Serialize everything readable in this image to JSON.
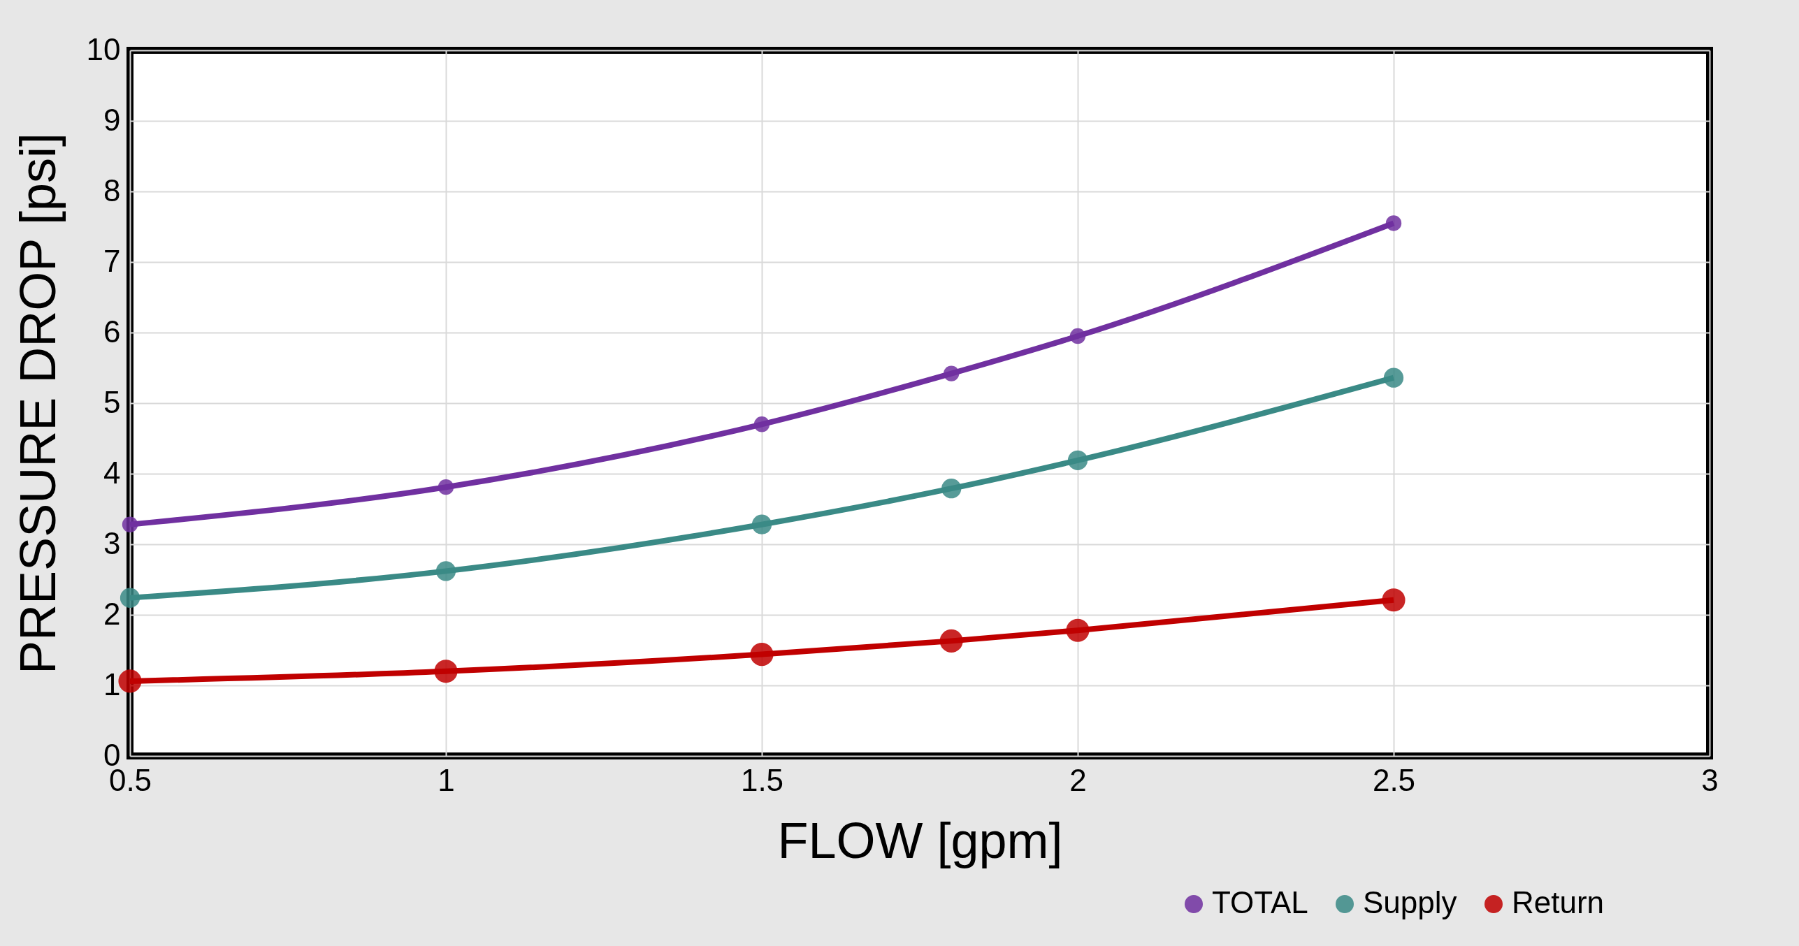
{
  "chart_data": {
    "type": "line",
    "xlabel": "FLOW [gpm]",
    "ylabel": "PRESSURE DROP [psi]",
    "x": [
      0.5,
      1,
      1.5,
      1.8,
      2,
      2.5
    ],
    "series": [
      {
        "name": "TOTAL",
        "color": "#7030a0",
        "values": [
          3.28,
          3.81,
          4.7,
          5.42,
          5.95,
          7.55
        ]
      },
      {
        "name": "Supply",
        "color": "#3a8a86",
        "values": [
          2.24,
          2.62,
          3.28,
          3.79,
          4.19,
          5.36
        ]
      },
      {
        "name": "Return",
        "color": "#c00000",
        "values": [
          1.06,
          1.2,
          1.44,
          1.63,
          1.78,
          2.21
        ]
      }
    ],
    "xlim": [
      0.5,
      3
    ],
    "xticks": [
      0.5,
      1,
      1.5,
      2,
      2.5,
      3
    ],
    "ylim": [
      0,
      10
    ],
    "yticks": [
      0,
      1,
      2,
      3,
      4,
      5,
      6,
      7,
      8,
      9,
      10
    ],
    "grid": true,
    "legend": "bottom right",
    "marker": "circle",
    "line_style": "solid"
  }
}
